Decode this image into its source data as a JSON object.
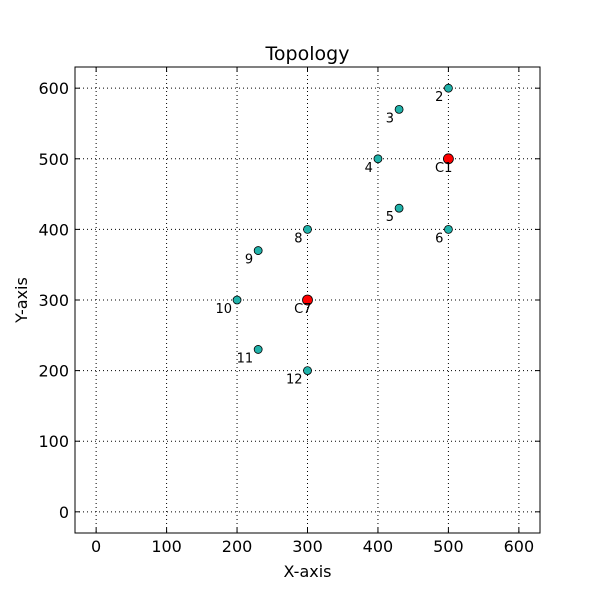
{
  "chart_data": {
    "type": "scatter",
    "title": "Topology",
    "xlabel": "X-axis",
    "ylabel": "Y-axis",
    "xlim": [
      -30,
      630
    ],
    "ylim": [
      -30,
      630
    ],
    "xticks": [
      0,
      100,
      200,
      300,
      400,
      500,
      600
    ],
    "yticks": [
      0,
      100,
      200,
      300,
      400,
      500,
      600
    ],
    "grid": true,
    "series": [
      {
        "color": "#20b2aa",
        "points": [
          {
            "label": "2",
            "x": 500,
            "y": 600
          },
          {
            "label": "3",
            "x": 430,
            "y": 570
          },
          {
            "label": "4",
            "x": 400,
            "y": 500
          },
          {
            "label": "5",
            "x": 430,
            "y": 430
          },
          {
            "label": "6",
            "x": 500,
            "y": 400
          },
          {
            "label": "8",
            "x": 300,
            "y": 400
          },
          {
            "label": "9",
            "x": 230,
            "y": 370
          },
          {
            "label": "10",
            "x": 200,
            "y": 300
          },
          {
            "label": "11",
            "x": 230,
            "y": 230
          },
          {
            "label": "12",
            "x": 300,
            "y": 200
          }
        ]
      },
      {
        "color": "#ff0000",
        "points": [
          {
            "label": "C1",
            "x": 500,
            "y": 500
          },
          {
            "label": "C7",
            "x": 300,
            "y": 300
          }
        ]
      }
    ]
  }
}
